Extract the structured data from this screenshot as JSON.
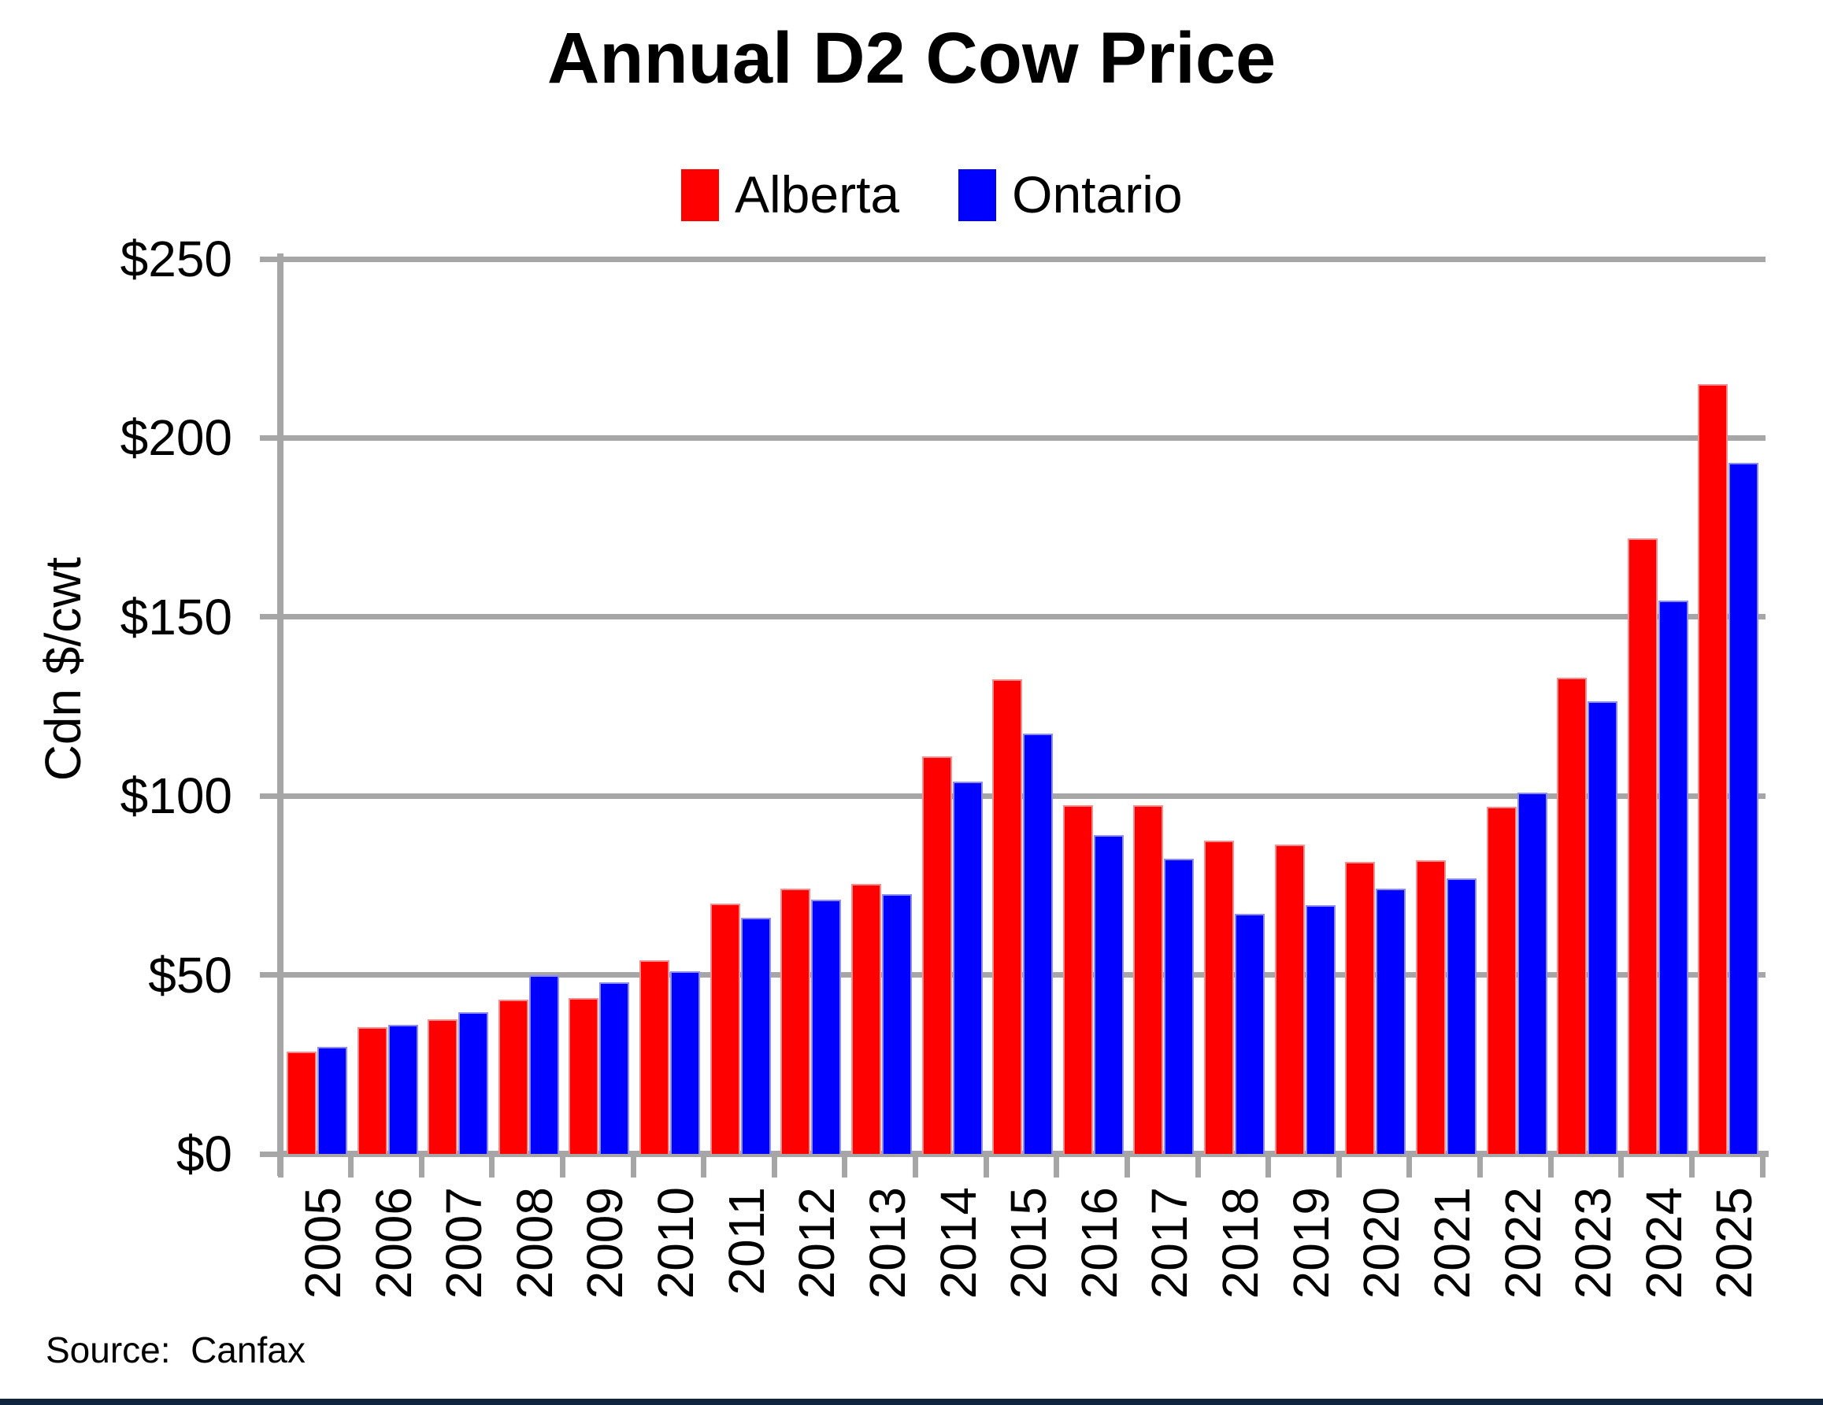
{
  "title": "Annual D2 Cow Price",
  "legend": [
    {
      "label": "Alberta",
      "color": "#FF0000"
    },
    {
      "label": "Ontario",
      "color": "#0000FF"
    }
  ],
  "source": {
    "text": "Source:  Canfax"
  },
  "colors": {
    "alberta_bar": "#FF0000",
    "ontario_bar": "#0000FF",
    "grid": "#A6A6A6",
    "accent_bar": "#10243E",
    "text": "#000000"
  },
  "chart_data": {
    "type": "bar",
    "title": "Annual D2 Cow Price",
    "ylabel": "Cdn $/cwt",
    "xlabel": "",
    "ylim": [
      0,
      250
    ],
    "yticks": [
      0,
      50,
      100,
      150,
      200,
      250
    ],
    "ytick_labels": [
      "$0",
      "$50",
      "$100",
      "$150",
      "$200",
      "$250"
    ],
    "grid": true,
    "legend_position": "top",
    "categories": [
      "2005",
      "2006",
      "2007",
      "2008",
      "2009",
      "2010",
      "2011",
      "2012",
      "2013",
      "2014",
      "2015",
      "2016",
      "2017",
      "2018",
      "2019",
      "2020",
      "2021",
      "2022",
      "2023",
      "2024",
      "2025"
    ],
    "series": [
      {
        "name": "Alberta",
        "color": "#FF0000",
        "values": [
          28.5,
          35.5,
          37.5,
          43,
          43.5,
          54,
          70,
          74,
          75.5,
          111,
          132.5,
          97.5,
          97.5,
          87.5,
          86.5,
          81.5,
          82,
          97,
          133,
          172,
          215
        ]
      },
      {
        "name": "Ontario",
        "color": "#0000FF",
        "values": [
          30,
          36,
          39.5,
          50,
          48,
          51,
          66,
          71,
          72.5,
          104,
          117.5,
          89,
          82.5,
          67,
          69.5,
          74,
          77,
          101,
          126.5,
          154.5,
          193
        ]
      }
    ]
  }
}
